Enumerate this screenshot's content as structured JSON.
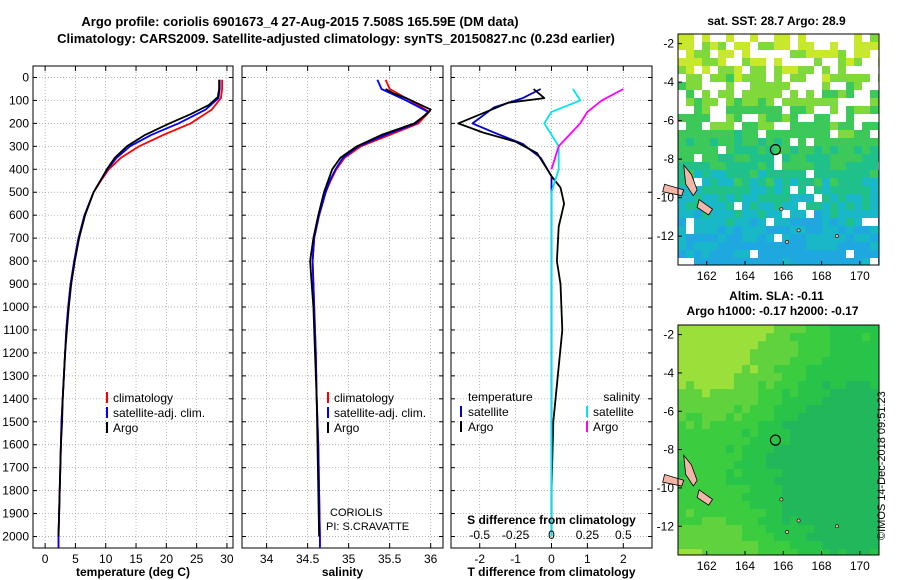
{
  "header": {
    "line1": "Argo profile: coriolis 6901673_4 27-Aug-2015 7.508S 165.59E (DM data)",
    "line2": "Climatology: CARS2009. Satellite-adjusted climatology: synTS_20150827.nc (0.23d earlier)"
  },
  "depth_axis": {
    "ticks": [
      0,
      100,
      200,
      300,
      400,
      500,
      600,
      700,
      800,
      900,
      1000,
      1100,
      1200,
      1300,
      1400,
      1500,
      1600,
      1700,
      1800,
      1900,
      2000
    ]
  },
  "annotations": {
    "institution": "CORIOLIS",
    "pi": "PI: S.CRAVATTE"
  },
  "credit": "©IMOS 14-Dec-2018 09:51:23",
  "colors": {
    "climatology": "#ff0000",
    "satellite": "#0000ff",
    "argo": "#000000",
    "t_sat": "#0000cc",
    "s_sat": "#00e5ee",
    "s_argo": "#ff00ff"
  },
  "chart_data": [
    {
      "type": "line",
      "xlabel": "temperature (deg C)",
      "xlim": [
        -2,
        31
      ],
      "ylim": [
        2050,
        0
      ],
      "xticks": [
        0,
        5,
        10,
        15,
        20,
        25,
        30
      ],
      "legend": [
        "climatology",
        "satellite-adj. clim.",
        "Argo"
      ],
      "series": [
        {
          "name": "climatology",
          "points": [
            [
              29.2,
              10
            ],
            [
              29.2,
              50
            ],
            [
              29.0,
              90
            ],
            [
              27.5,
              140
            ],
            [
              24.0,
              200
            ],
            [
              19.5,
              250
            ],
            [
              15.5,
              300
            ],
            [
              12.5,
              350
            ],
            [
              10.5,
              400
            ],
            [
              9.2,
              450
            ],
            [
              8.0,
              500
            ],
            [
              6.5,
              600
            ],
            [
              5.5,
              700
            ],
            [
              4.8,
              800
            ],
            [
              4.2,
              900
            ],
            [
              3.8,
              1000
            ],
            [
              3.5,
              1100
            ],
            [
              3.3,
              1200
            ],
            [
              3.1,
              1300
            ],
            [
              2.9,
              1400
            ],
            [
              2.7,
              1500
            ],
            [
              2.6,
              1600
            ],
            [
              2.5,
              1700
            ],
            [
              2.4,
              1800
            ],
            [
              2.3,
              1900
            ],
            [
              2.2,
              2000
            ],
            [
              2.2,
              2050
            ]
          ]
        },
        {
          "name": "satellite-adj. clim.",
          "points": [
            [
              28.8,
              10
            ],
            [
              28.8,
              50
            ],
            [
              28.6,
              90
            ],
            [
              26.5,
              140
            ],
            [
              22.0,
              200
            ],
            [
              17.5,
              250
            ],
            [
              14.0,
              300
            ],
            [
              11.8,
              350
            ],
            [
              10.3,
              400
            ],
            [
              9.1,
              450
            ],
            [
              8.0,
              500
            ],
            [
              6.5,
              600
            ],
            [
              5.5,
              700
            ],
            [
              4.8,
              800
            ],
            [
              4.2,
              900
            ],
            [
              3.8,
              1000
            ],
            [
              3.5,
              1100
            ],
            [
              3.3,
              1200
            ],
            [
              3.1,
              1300
            ],
            [
              2.9,
              1400
            ],
            [
              2.7,
              1500
            ],
            [
              2.6,
              1600
            ],
            [
              2.5,
              1700
            ],
            [
              2.4,
              1800
            ],
            [
              2.3,
              1900
            ],
            [
              2.2,
              2000
            ],
            [
              2.2,
              2050
            ]
          ]
        },
        {
          "name": "Argo",
          "points": [
            [
              28.7,
              10
            ],
            [
              28.7,
              50
            ],
            [
              28.5,
              85
            ],
            [
              27.0,
              120
            ],
            [
              24.0,
              160
            ],
            [
              20.5,
              200
            ],
            [
              16.5,
              250
            ],
            [
              13.5,
              300
            ],
            [
              11.5,
              350
            ],
            [
              10.2,
              400
            ],
            [
              9.1,
              450
            ],
            [
              8.0,
              500
            ],
            [
              6.6,
              600
            ],
            [
              5.6,
              700
            ],
            [
              4.9,
              800
            ],
            [
              4.3,
              900
            ],
            [
              3.9,
              1000
            ],
            [
              3.6,
              1100
            ],
            [
              3.3,
              1200
            ],
            [
              3.1,
              1300
            ],
            [
              2.9,
              1400
            ],
            [
              2.8,
              1500
            ],
            [
              2.6,
              1600
            ],
            [
              2.5,
              1700
            ],
            [
              2.4,
              1800
            ],
            [
              2.3,
              1900
            ],
            [
              2.2,
              2000
            ]
          ]
        }
      ]
    },
    {
      "type": "line",
      "xlabel": "salinity",
      "xlim": [
        33.7,
        36.15
      ],
      "ylim": [
        2050,
        0
      ],
      "xticks": [
        34,
        34.5,
        35,
        35.5,
        36
      ],
      "legend": [
        "climatology",
        "satellite-adj. clim.",
        "Argo"
      ],
      "series": [
        {
          "name": "climatology",
          "points": [
            [
              35.45,
              10
            ],
            [
              35.5,
              50
            ],
            [
              35.75,
              100
            ],
            [
              35.98,
              150
            ],
            [
              35.85,
              200
            ],
            [
              35.5,
              250
            ],
            [
              35.15,
              300
            ],
            [
              34.95,
              350
            ],
            [
              34.85,
              400
            ],
            [
              34.78,
              450
            ],
            [
              34.72,
              500
            ],
            [
              34.64,
              600
            ],
            [
              34.58,
              700
            ],
            [
              34.56,
              800
            ],
            [
              34.57,
              900
            ],
            [
              34.58,
              1000
            ],
            [
              34.6,
              1200
            ],
            [
              34.61,
              1400
            ],
            [
              34.63,
              1600
            ],
            [
              34.64,
              1800
            ],
            [
              34.65,
              2000
            ],
            [
              34.65,
              2050
            ]
          ]
        },
        {
          "name": "satellite-adj. clim.",
          "points": [
            [
              35.35,
              10
            ],
            [
              35.4,
              50
            ],
            [
              35.7,
              100
            ],
            [
              35.97,
              150
            ],
            [
              35.82,
              200
            ],
            [
              35.45,
              250
            ],
            [
              35.12,
              300
            ],
            [
              34.93,
              350
            ],
            [
              34.84,
              400
            ],
            [
              34.77,
              450
            ],
            [
              34.72,
              500
            ],
            [
              34.64,
              600
            ],
            [
              34.58,
              700
            ],
            [
              34.56,
              800
            ],
            [
              34.57,
              900
            ],
            [
              34.58,
              1000
            ],
            [
              34.6,
              1200
            ],
            [
              34.61,
              1400
            ],
            [
              34.63,
              1600
            ],
            [
              34.64,
              1800
            ],
            [
              34.65,
              2000
            ],
            [
              34.65,
              2050
            ]
          ]
        },
        {
          "name": "Argo",
          "points": [
            [
              35.45,
              50
            ],
            [
              35.55,
              70
            ],
            [
              35.7,
              90
            ],
            [
              36.0,
              140
            ],
            [
              35.95,
              160
            ],
            [
              35.8,
              200
            ],
            [
              35.4,
              250
            ],
            [
              35.1,
              300
            ],
            [
              34.9,
              350
            ],
            [
              34.8,
              400
            ],
            [
              34.75,
              450
            ],
            [
              34.7,
              500
            ],
            [
              34.63,
              600
            ],
            [
              34.57,
              700
            ],
            [
              34.53,
              800
            ],
            [
              34.55,
              900
            ],
            [
              34.57,
              1000
            ],
            [
              34.59,
              1200
            ],
            [
              34.61,
              1400
            ],
            [
              34.62,
              1600
            ],
            [
              34.63,
              1800
            ],
            [
              34.64,
              2000
            ]
          ]
        }
      ]
    },
    {
      "type": "line",
      "xlabel": "T difference from climatology",
      "xlim": [
        -2.8,
        2.8
      ],
      "ylim": [
        2050,
        0
      ],
      "xticks": [
        -2,
        -1,
        0,
        1,
        2
      ],
      "secondary_axis": {
        "label": "S difference from climatology",
        "ticks": [
          -0.5,
          -0.25,
          0,
          0.25,
          0.5
        ]
      },
      "legend": {
        "temperature": [
          "satellite",
          "Argo"
        ],
        "salinity": [
          "satellite",
          "Argo"
        ]
      },
      "series": [
        {
          "name": "temperature satellite",
          "points": [
            [
              -0.3,
              50
            ],
            [
              -0.8,
              90
            ],
            [
              -1.6,
              130
            ],
            [
              -2.2,
              200
            ],
            [
              -1.6,
              240
            ],
            [
              -0.8,
              290
            ],
            [
              -0.3,
              350
            ],
            [
              0,
              430
            ],
            [
              0,
              2000
            ]
          ]
        },
        {
          "name": "temperature Argo",
          "points": [
            [
              -0.5,
              50
            ],
            [
              -0.2,
              90
            ],
            [
              -1.2,
              110
            ],
            [
              -2.6,
              200
            ],
            [
              -1.9,
              240
            ],
            [
              -1.0,
              280
            ],
            [
              -0.4,
              330
            ],
            [
              0,
              430
            ],
            [
              0.25,
              480
            ],
            [
              0.35,
              550
            ],
            [
              0.2,
              650
            ],
            [
              0.15,
              800
            ],
            [
              0.25,
              900
            ],
            [
              0.3,
              1100
            ],
            [
              0.05,
              1500
            ],
            [
              0,
              1800
            ],
            [
              0,
              2000
            ]
          ]
        },
        {
          "name": "salinity satellite",
          "points": [
            [
              0.15,
              50
            ],
            [
              0.2,
              100
            ],
            [
              0,
              150
            ],
            [
              -0.05,
              200
            ],
            [
              0.05,
              300
            ],
            [
              0.05,
              400
            ],
            [
              0,
              500
            ],
            [
              0,
              2000
            ]
          ]
        },
        {
          "name": "salinity Argo",
          "points": [
            [
              0.5,
              50
            ],
            [
              0.35,
              100
            ],
            [
              0.25,
              150
            ],
            [
              0.2,
              200
            ],
            [
              0.05,
              300
            ],
            [
              0,
              400
            ]
          ]
        }
      ]
    }
  ],
  "maps": [
    {
      "title": "sat. SST: 28.7 Argo: 28.9",
      "xticks": [
        162,
        164,
        166,
        168,
        170
      ],
      "yticks": [
        -2,
        -4,
        -6,
        -8,
        -10,
        -12
      ],
      "xlim": [
        160.5,
        171
      ],
      "ylim": [
        -13.5,
        -1.5
      ],
      "marker": {
        "lon": 165.59,
        "lat": -7.508
      }
    },
    {
      "title": "Altim. SLA: -0.11",
      "subtitle": "Argo h1000: -0.17 h2000: -0.17",
      "xticks": [
        162,
        164,
        166,
        168,
        170
      ],
      "yticks": [
        -2,
        -4,
        -6,
        -8,
        -10,
        -12
      ],
      "xlim": [
        160.5,
        171
      ],
      "ylim": [
        -13.5,
        -1.5
      ],
      "marker": {
        "lon": 165.59,
        "lat": -7.508
      }
    }
  ]
}
